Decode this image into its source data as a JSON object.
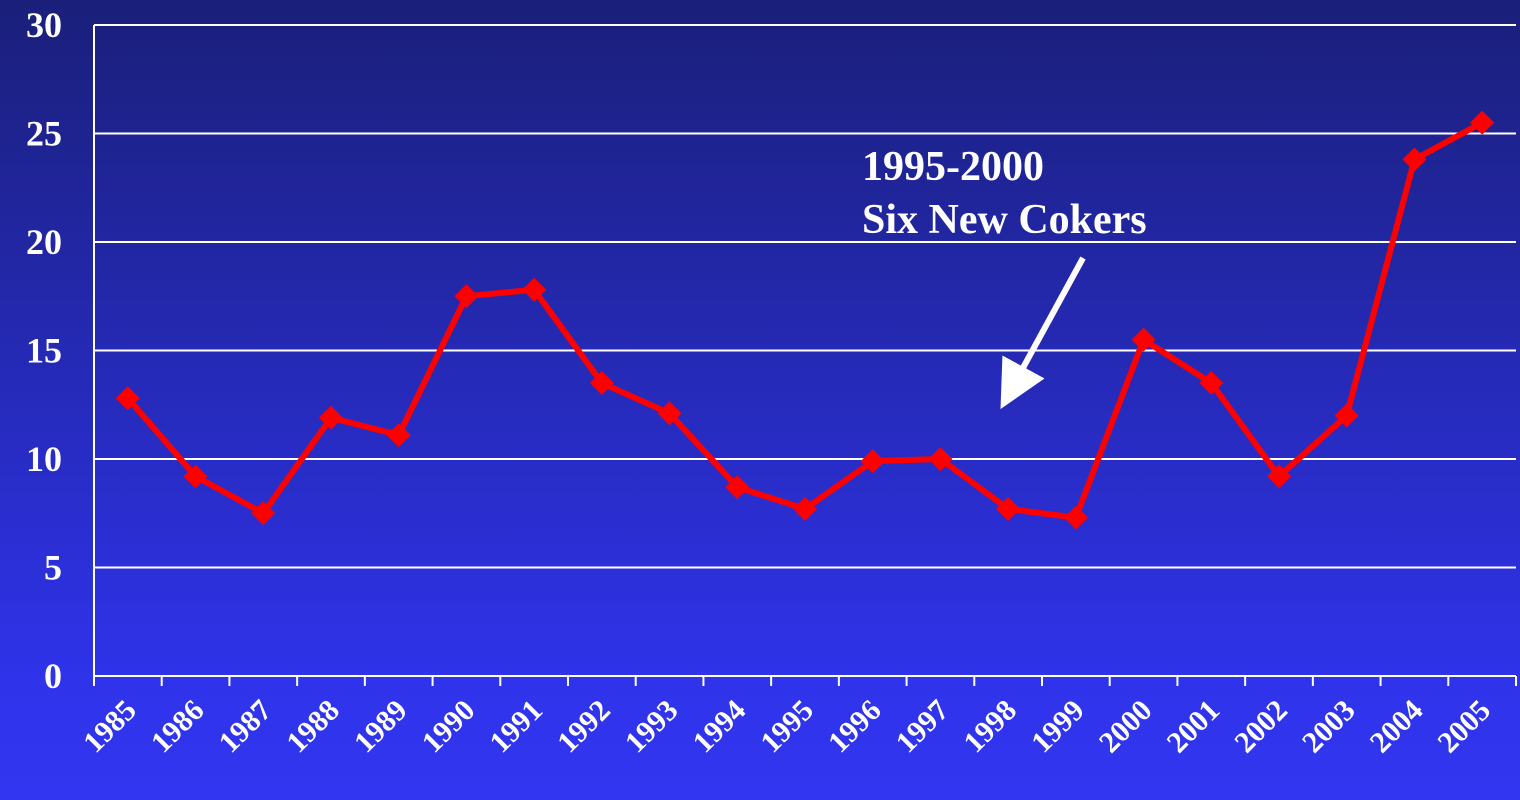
{
  "chart_data": {
    "type": "line",
    "categories": [
      "1985",
      "1986",
      "1987",
      "1988",
      "1989",
      "1990",
      "1991",
      "1992",
      "1993",
      "1994",
      "1995",
      "1996",
      "1997",
      "1998",
      "1999",
      "2000",
      "2001",
      "2002",
      "2003",
      "2004",
      "2005"
    ],
    "values": [
      12.8,
      9.2,
      7.5,
      11.9,
      11.1,
      17.5,
      17.8,
      13.5,
      12.1,
      8.7,
      7.7,
      9.9,
      10.0,
      7.7,
      7.3,
      15.5,
      13.5,
      9.2,
      12.0,
      23.8,
      25.5
    ],
    "color": "#ff0000",
    "ylim": [
      0,
      30
    ],
    "yticks": [
      0,
      5,
      10,
      15,
      20,
      25,
      30
    ],
    "grid": true,
    "annotation": [
      "1995-2000",
      "Six New Cokers"
    ]
  }
}
